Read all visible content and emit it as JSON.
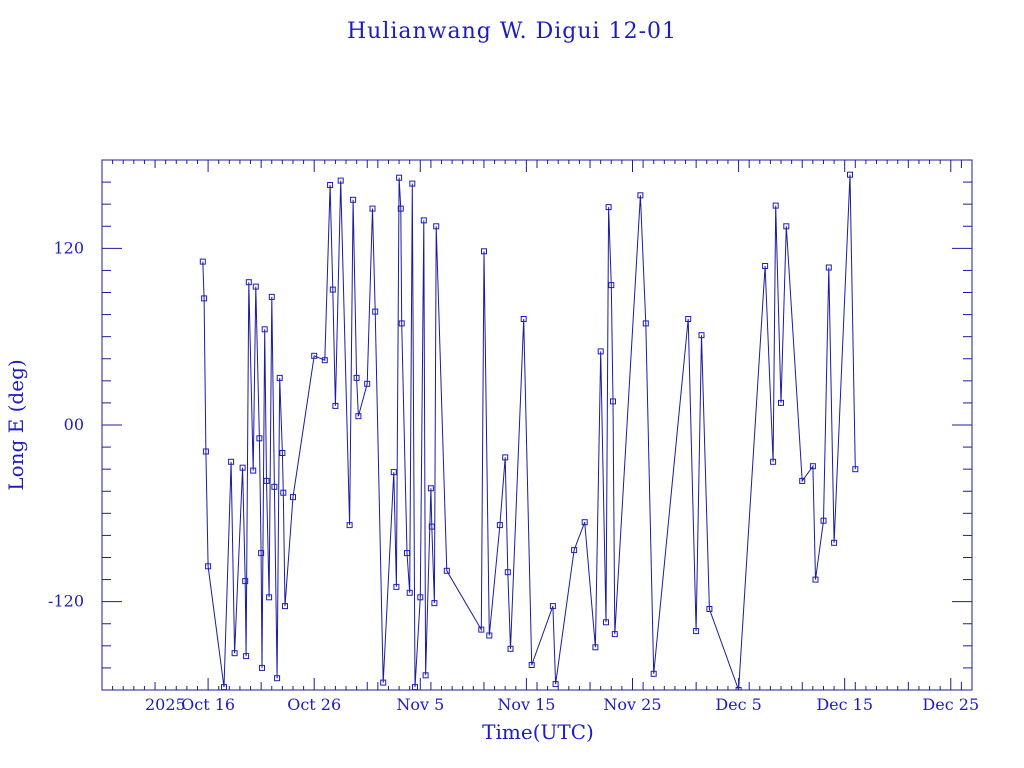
{
  "chart_data": {
    "type": "line",
    "title": "Hulianwang W. Digui 12-01",
    "xlabel": "Time(UTC)",
    "ylabel": "Long E (deg)",
    "x_origin_label": "2025",
    "xlim": [
      "2025-10-06",
      "2025-12-27"
    ],
    "ylim": [
      -180,
      180
    ],
    "x_ticks": [
      {
        "date": "2025-10-16",
        "label": "Oct 16"
      },
      {
        "date": "2025-10-26",
        "label": "Oct 26"
      },
      {
        "date": "2025-11-05",
        "label": "Nov  5"
      },
      {
        "date": "2025-11-15",
        "label": "Nov 15"
      },
      {
        "date": "2025-11-25",
        "label": "Nov 25"
      },
      {
        "date": "2025-12-05",
        "label": "Dec  5"
      },
      {
        "date": "2025-12-15",
        "label": "Dec 15"
      },
      {
        "date": "2025-12-25",
        "label": "Dec 25"
      }
    ],
    "y_ticks": [
      {
        "value": 120,
        "label": "120"
      },
      {
        "value": 0,
        "label": "00"
      },
      {
        "value": -120,
        "label": "-120"
      }
    ],
    "grid": false,
    "legend": "none",
    "series": [
      {
        "marker": "square",
        "color": "#1c1c9c",
        "points": [
          [
            "2025-10-15 12:00",
            111
          ],
          [
            "2025-10-15 15:00",
            86
          ],
          [
            "2025-10-15 19:00",
            -18
          ],
          [
            "2025-10-16 00:00",
            -96
          ],
          [
            "2025-10-17 12:00",
            -178
          ],
          [
            "2025-10-18 04:00",
            -25
          ],
          [
            "2025-10-18 12:00",
            -155
          ],
          [
            "2025-10-19 06:00",
            -29
          ],
          [
            "2025-10-19 12:00",
            -106
          ],
          [
            "2025-10-19 14:00",
            -157
          ],
          [
            "2025-10-19 20:00",
            97
          ],
          [
            "2025-10-20 06:00",
            -31
          ],
          [
            "2025-10-20 12:00",
            94
          ],
          [
            "2025-10-20 20:00",
            -9
          ],
          [
            "2025-10-21 00:00",
            -87
          ],
          [
            "2025-10-21 02:00",
            -165
          ],
          [
            "2025-10-21 08:00",
            65
          ],
          [
            "2025-10-21 12:00",
            -38
          ],
          [
            "2025-10-21 18:00",
            -117
          ],
          [
            "2025-10-22 00:00",
            87
          ],
          [
            "2025-10-22 06:00",
            -42
          ],
          [
            "2025-10-22 12:00",
            -172
          ],
          [
            "2025-10-22 18:00",
            32
          ],
          [
            "2025-10-23 00:00",
            -19
          ],
          [
            "2025-10-23 02:00",
            -46
          ],
          [
            "2025-10-23 06:00",
            -123
          ],
          [
            "2025-10-24 00:00",
            -49
          ],
          [
            "2025-10-26 00:00",
            47
          ],
          [
            "2025-10-27 00:00",
            44
          ],
          [
            "2025-10-27 12:00",
            163
          ],
          [
            "2025-10-27 18:00",
            92
          ],
          [
            "2025-10-28 00:00",
            13
          ],
          [
            "2025-10-28 12:00",
            166
          ],
          [
            "2025-10-29 08:00",
            -68
          ],
          [
            "2025-10-29 16:00",
            153
          ],
          [
            "2025-10-30 00:00",
            32
          ],
          [
            "2025-10-30 04:00",
            6
          ],
          [
            "2025-10-31 00:00",
            28
          ],
          [
            "2025-10-31 12:00",
            147
          ],
          [
            "2025-10-31 18:00",
            77
          ],
          [
            "2025-11-01 12:00",
            -175
          ],
          [
            "2025-11-02 12:00",
            -32
          ],
          [
            "2025-11-02 18:00",
            -110
          ],
          [
            "2025-11-03 00:00",
            168
          ],
          [
            "2025-11-03 04:00",
            147
          ],
          [
            "2025-11-03 06:00",
            69
          ],
          [
            "2025-11-03 18:00",
            -87
          ],
          [
            "2025-11-04 00:00",
            -114
          ],
          [
            "2025-11-04 06:00",
            164
          ],
          [
            "2025-11-04 12:00",
            -178
          ],
          [
            "2025-11-05 00:00",
            -117
          ],
          [
            "2025-11-05 08:00",
            139
          ],
          [
            "2025-11-05 12:00",
            -170
          ],
          [
            "2025-11-06 00:00",
            -43
          ],
          [
            "2025-11-06 02:00",
            -69
          ],
          [
            "2025-11-06 08:00",
            -121
          ],
          [
            "2025-11-06 12:00",
            135
          ],
          [
            "2025-11-07 12:00",
            -99
          ],
          [
            "2025-11-10 18:00",
            -139
          ],
          [
            "2025-11-11 00:00",
            118
          ],
          [
            "2025-11-11 12:00",
            -143
          ],
          [
            "2025-11-12 12:00",
            -68
          ],
          [
            "2025-11-13 00:00",
            -22
          ],
          [
            "2025-11-13 06:00",
            -100
          ],
          [
            "2025-11-13 12:00",
            -152
          ],
          [
            "2025-11-14 18:00",
            72
          ],
          [
            "2025-11-15 12:00",
            -163
          ],
          [
            "2025-11-17 12:00",
            -123
          ],
          [
            "2025-11-17 18:00",
            -176
          ],
          [
            "2025-11-19 12:00",
            -85
          ],
          [
            "2025-11-20 12:00",
            -66
          ],
          [
            "2025-11-21 12:00",
            -151
          ],
          [
            "2025-11-22 00:00",
            50
          ],
          [
            "2025-11-22 12:00",
            -134
          ],
          [
            "2025-11-22 18:00",
            148
          ],
          [
            "2025-11-23 00:00",
            95
          ],
          [
            "2025-11-23 04:00",
            16
          ],
          [
            "2025-11-23 08:00",
            -142
          ],
          [
            "2025-11-25 18:00",
            156
          ],
          [
            "2025-11-26 06:00",
            69
          ],
          [
            "2025-11-27 00:00",
            -169
          ],
          [
            "2025-11-30 06:00",
            72
          ],
          [
            "2025-12-01 00:00",
            -140
          ],
          [
            "2025-12-01 12:00",
            61
          ],
          [
            "2025-12-02 06:00",
            -125
          ],
          [
            "2025-12-05 00:00",
            -180
          ],
          [
            "2025-12-07 12:00",
            108
          ],
          [
            "2025-12-08 06:00",
            -25
          ],
          [
            "2025-12-08 12:00",
            149
          ],
          [
            "2025-12-09 00:00",
            15
          ],
          [
            "2025-12-09 12:00",
            135
          ],
          [
            "2025-12-11 00:00",
            -38
          ],
          [
            "2025-12-12 00:00",
            -28
          ],
          [
            "2025-12-12 06:00",
            -105
          ],
          [
            "2025-12-13 00:00",
            -65
          ],
          [
            "2025-12-13 12:00",
            107
          ],
          [
            "2025-12-14 00:00",
            -80
          ],
          [
            "2025-12-15 12:00",
            170
          ],
          [
            "2025-12-16 00:00",
            -30
          ]
        ]
      }
    ]
  }
}
